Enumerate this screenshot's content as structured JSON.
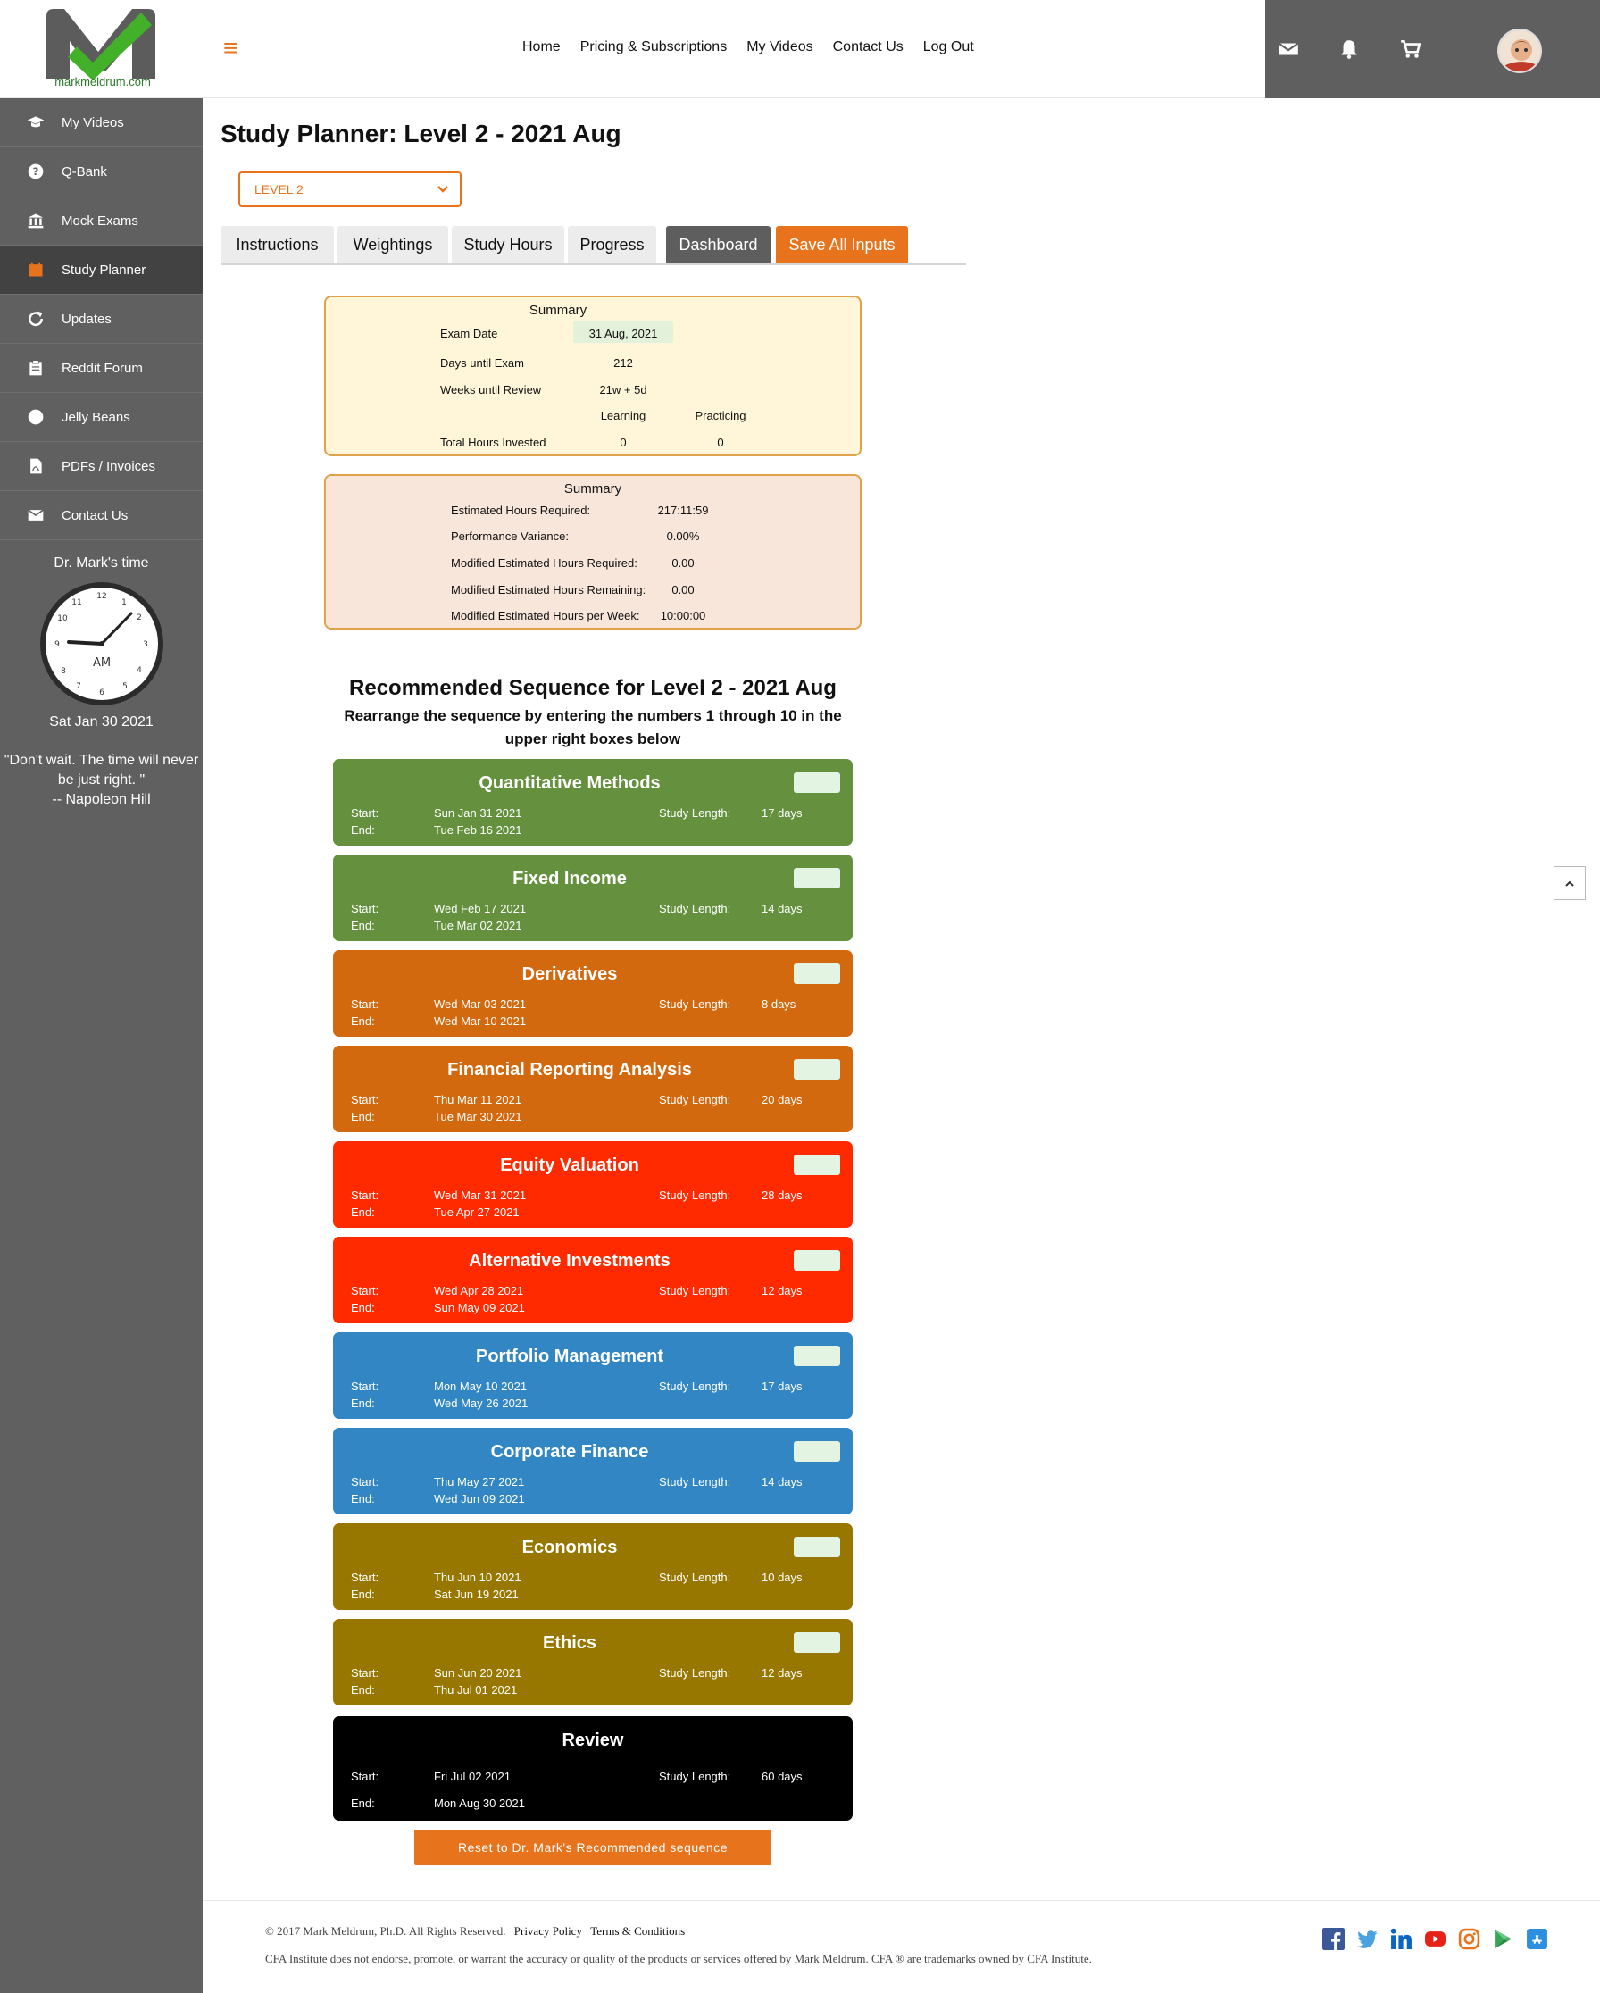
{
  "header": {
    "logo_text": "markmeldrum.com",
    "nav": [
      "Home",
      "Pricing & Subscriptions",
      "My Videos",
      "Contact Us",
      "Log Out"
    ],
    "icons": [
      "envelope-icon",
      "bell-icon",
      "cart-icon",
      "avatar"
    ]
  },
  "sidebar": {
    "items": [
      {
        "label": "My Videos",
        "icon": "graduation-cap-icon"
      },
      {
        "label": "Q-Bank",
        "icon": "question-circle-icon"
      },
      {
        "label": "Mock Exams",
        "icon": "bank-icon"
      },
      {
        "label": "Study Planner",
        "icon": "calendar-icon"
      },
      {
        "label": "Updates",
        "icon": "refresh-icon"
      },
      {
        "label": "Reddit Forum",
        "icon": "clipboard-icon"
      },
      {
        "label": "Jelly Beans",
        "icon": "circle-icon"
      },
      {
        "label": "PDFs / Invoices",
        "icon": "pdf-file-icon"
      },
      {
        "label": "Contact Us",
        "icon": "envelope-icon"
      }
    ],
    "clock_label": "Dr. Mark's time",
    "clock_ampm": "AM",
    "clock_date": "Sat Jan 30 2021",
    "quote_line1": "\"Don't wait. The time will never be just right. \"",
    "quote_line2": "-- Napoleon Hill"
  },
  "main": {
    "title": "Study Planner: Level 2 - 2021 Aug",
    "level_select": "LEVEL 2",
    "tabs": [
      "Instructions",
      "Weightings",
      "Study Hours",
      "Progress",
      "Dashboard",
      "Save All Inputs"
    ],
    "summary1": {
      "title": "Summary",
      "exam_date_label": "Exam Date",
      "exam_date": "31 Aug, 2021",
      "days_label": "Days until Exam",
      "days": "212",
      "weeks_label": "Weeks until Review",
      "weeks": "21w + 5d",
      "col_learning": "Learning",
      "col_practicing": "Practicing",
      "total_label": "Total Hours Invested",
      "total_learning": "0",
      "total_practicing": "0"
    },
    "summary2": {
      "title": "Summary",
      "rows": [
        {
          "label": "Estimated Hours Required:",
          "value": "217:11:59"
        },
        {
          "label": "Performance Variance:",
          "value": "0.00%"
        },
        {
          "label": "Modified Estimated Hours Required:",
          "value": "0.00"
        },
        {
          "label": "Modified Estimated Hours Remaining:",
          "value": "0.00"
        },
        {
          "label": "Modified Estimated Hours per Week:",
          "value": "10:00:00"
        }
      ]
    },
    "sequence_title": "Recommended Sequence for Level 2 - 2021 Aug",
    "sequence_subtitle": "Rearrange the sequence by entering the numbers 1 through 10 in the upper right boxes below",
    "labels": {
      "start": "Start:",
      "end": "End:",
      "study_length": "Study Length:"
    },
    "cards": [
      {
        "name": "Quantitative Methods",
        "start": "Sun Jan 31 2021",
        "end": "Tue Feb 16 2021",
        "length": "17 days",
        "color": "#65913f"
      },
      {
        "name": "Fixed Income",
        "start": "Wed Feb 17 2021",
        "end": "Tue Mar 02 2021",
        "length": "14 days",
        "color": "#65913f"
      },
      {
        "name": "Derivatives",
        "start": "Wed Mar 03 2021",
        "end": "Wed Mar 10 2021",
        "length": "8 days",
        "color": "#d3690f"
      },
      {
        "name": "Financial Reporting Analysis",
        "start": "Thu Mar 11 2021",
        "end": "Tue Mar 30 2021",
        "length": "20 days",
        "color": "#d3690f"
      },
      {
        "name": "Equity Valuation",
        "start": "Wed Mar 31 2021",
        "end": "Tue Apr 27 2021",
        "length": "28 days",
        "color": "#ff2a00"
      },
      {
        "name": "Alternative Investments",
        "start": "Wed Apr 28 2021",
        "end": "Sun May 09 2021",
        "length": "12 days",
        "color": "#ff2a00"
      },
      {
        "name": "Portfolio Management",
        "start": "Mon May 10 2021",
        "end": "Wed May 26 2021",
        "length": "17 days",
        "color": "#3186c3"
      },
      {
        "name": "Corporate Finance",
        "start": "Thu May 27 2021",
        "end": "Wed Jun 09 2021",
        "length": "14 days",
        "color": "#3186c3"
      },
      {
        "name": "Economics",
        "start": "Thu Jun 10 2021",
        "end": "Sat Jun 19 2021",
        "length": "10 days",
        "color": "#977700"
      },
      {
        "name": "Ethics",
        "start": "Sun Jun 20 2021",
        "end": "Thu Jul 01 2021",
        "length": "12 days",
        "color": "#977700"
      },
      {
        "name": "Review",
        "start": "Fri Jul 02 2021",
        "end": "Mon Aug 30 2021",
        "length": "60 days",
        "color": "#000000"
      }
    ],
    "reset_button": "Reset to Dr. Mark's Recommended sequence"
  },
  "footer": {
    "copyright": "© 2017 Mark Meldrum, Ph.D. All Rights Reserved.",
    "privacy": "Privacy Policy",
    "terms": "Terms & Conditions",
    "disclaimer": "CFA Institute does not endorse, promote, or warrant the accuracy or quality of the products or services offered by Mark Meldrum. CFA ® are trademarks owned by CFA Institute.",
    "social": [
      "facebook-icon",
      "twitter-icon",
      "linkedin-icon",
      "youtube-icon",
      "instagram-icon",
      "google-play-icon",
      "app-store-icon"
    ]
  }
}
